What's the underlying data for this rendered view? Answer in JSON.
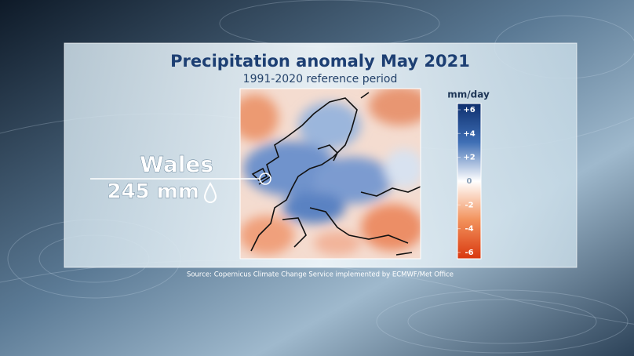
{
  "header": {
    "title": "Precipitation anomaly May 2021",
    "subtitle": "1991-2020 reference period"
  },
  "callout": {
    "place": "Wales",
    "amount": "245 mm"
  },
  "colorbar": {
    "unit": "mm/day",
    "ticks": [
      {
        "value": 6,
        "label": "+6"
      },
      {
        "value": 4,
        "label": "+4"
      },
      {
        "value": 2,
        "label": "+2"
      },
      0,
      -2,
      -4,
      -6
    ]
  },
  "source": "Source: Copernicus Climate Change Service implemented by ECMWF/Met Office"
}
